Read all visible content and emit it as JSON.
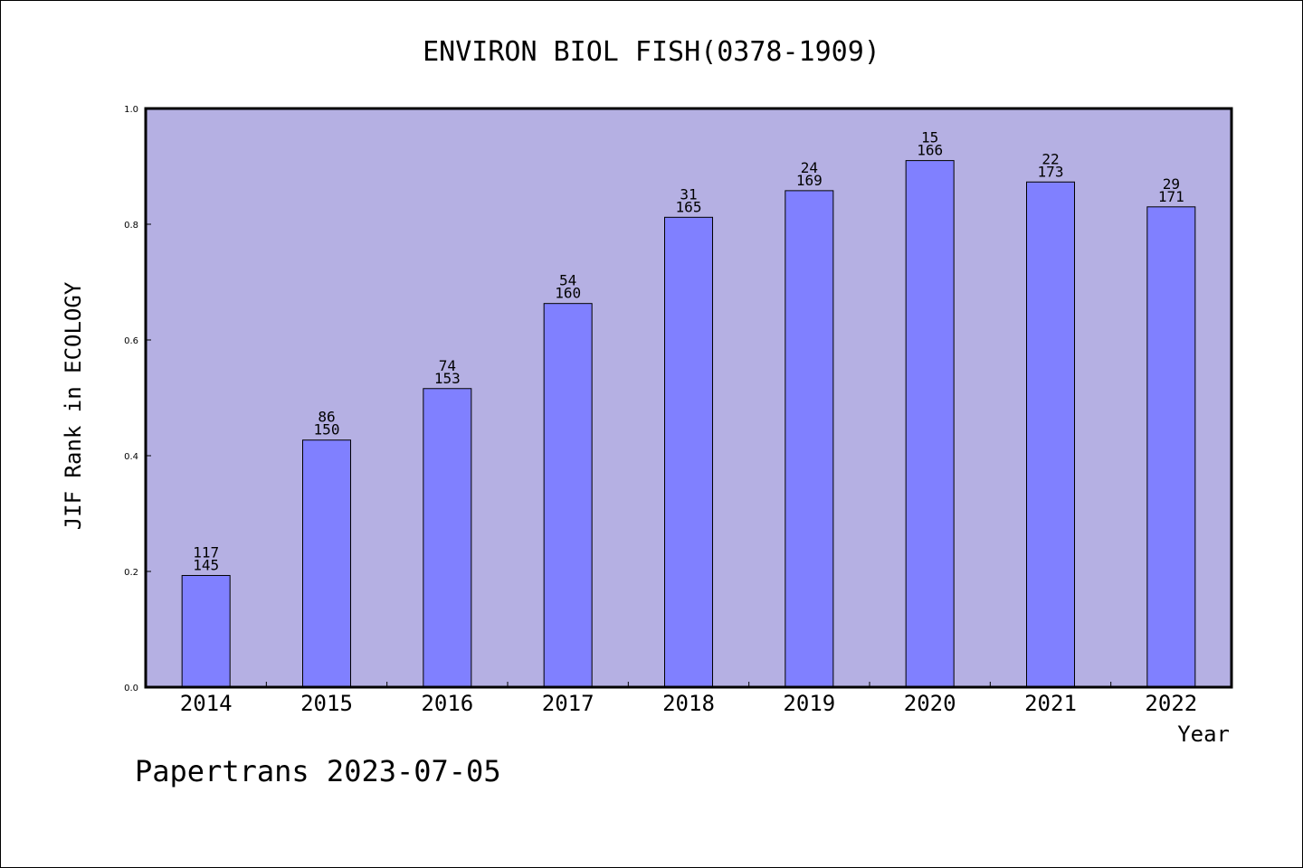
{
  "chart_data": {
    "type": "bar",
    "title": "ENVIRON BIOL FISH(0378-1909)",
    "xlabel": "Year",
    "ylabel": "JIF Rank in ECOLOGY",
    "ylim": [
      0,
      1.0
    ],
    "yticks": [
      "0.0",
      "0.2",
      "0.4",
      "0.6",
      "0.8",
      "1.0"
    ],
    "categories": [
      "2014",
      "2015",
      "2016",
      "2017",
      "2018",
      "2019",
      "2020",
      "2021",
      "2022"
    ],
    "values": [
      0.193,
      0.427,
      0.516,
      0.663,
      0.812,
      0.858,
      0.91,
      0.873,
      0.83
    ],
    "rank_labels": [
      "117",
      "86",
      "74",
      "54",
      "31",
      "24",
      "15",
      "22",
      "29"
    ],
    "total_labels": [
      "145",
      "150",
      "153",
      "160",
      "165",
      "169",
      "166",
      "173",
      "171"
    ],
    "grid": false,
    "colors": {
      "plot_background": "#b5b0e3",
      "bar_fill": "#8080ff",
      "bar_stroke": "#000000"
    }
  },
  "footer": "Papertrans 2023-07-05"
}
